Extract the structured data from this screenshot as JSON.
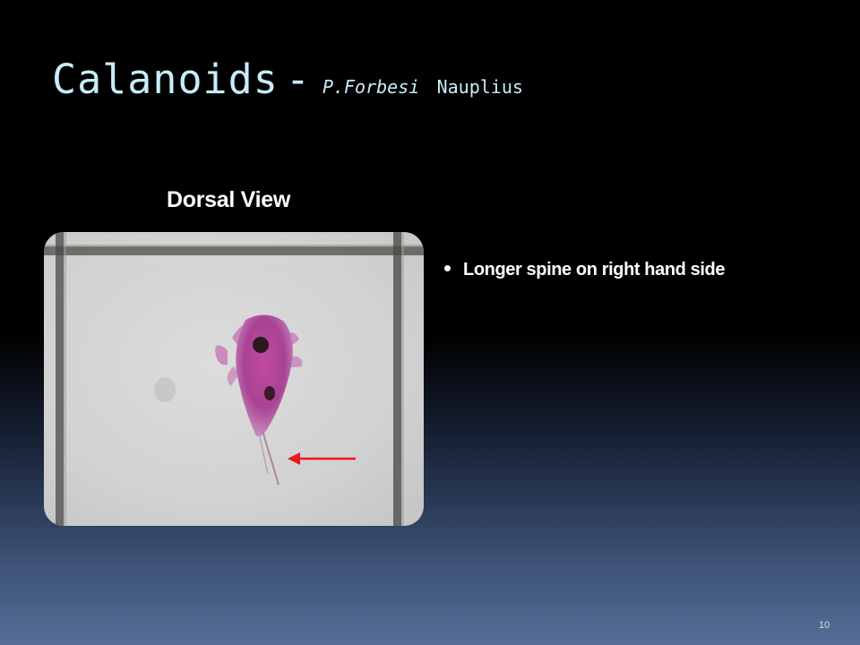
{
  "slide": {
    "title": {
      "main": "Calanoids",
      "separator": "-",
      "species": "P.Forbesi",
      "stage": "Nauplius"
    },
    "image_caption": "Dorsal View",
    "bullets": [
      "Longer spine on right hand side"
    ],
    "page_number": "10"
  },
  "colors": {
    "title": "#c8ecfb",
    "text": "#ffffff",
    "arrow": "#e8181e",
    "specimen": "#b0489a"
  },
  "icons": {
    "bullet": "bullet-dot",
    "arrow": "left-arrow-annotation"
  }
}
